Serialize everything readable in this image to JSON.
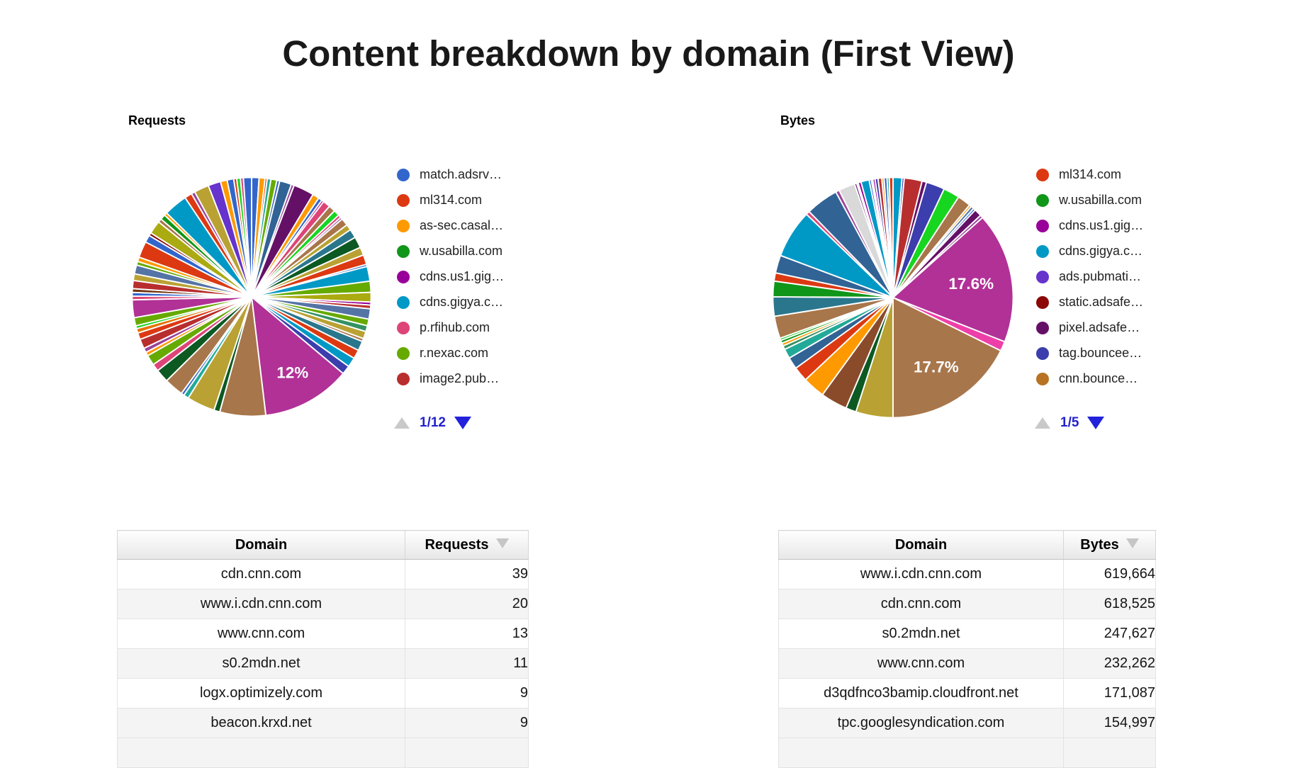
{
  "title": "Content breakdown by domain (First View)",
  "pager_colors": {
    "disabled": "#c9c9c9",
    "active": "#2222dd",
    "text": "#2222cc"
  },
  "chart_data": [
    {
      "type": "pie",
      "title": "Requests",
      "legend_position": "right",
      "legend_page": "1/12",
      "legend_entries": [
        {
          "label": "match.adsrv…",
          "color": "#3366CC"
        },
        {
          "label": "ml314.com",
          "color": "#DC3912"
        },
        {
          "label": "as-sec.casal…",
          "color": "#FF9900"
        },
        {
          "label": "w.usabilla.com",
          "color": "#109618"
        },
        {
          "label": "cdns.us1.gig…",
          "color": "#990099"
        },
        {
          "label": "cdns.gigya.c…",
          "color": "#0099C6"
        },
        {
          "label": "p.rfihub.com",
          "color": "#DD4477"
        },
        {
          "label": "r.nexac.com",
          "color": "#66AA00"
        },
        {
          "label": "image2.pub…",
          "color": "#B82E2E"
        }
      ],
      "labeled_slices": [
        {
          "label": "12%",
          "value_pct": 12
        }
      ],
      "percent_labels": [
        {
          "text": "12%",
          "slice": 38,
          "r": 0.72
        }
      ],
      "render_slices": [
        [
          "#3366CC",
          1.0
        ],
        [
          "#FF9900",
          0.8
        ],
        [
          "#DC3912",
          0.3
        ],
        [
          "#22AA99",
          0.5
        ],
        [
          "#66AA00",
          0.8
        ],
        [
          "#3366CC",
          0.4
        ],
        [
          "#316395",
          1.6
        ],
        [
          "#994499",
          0.4
        ],
        [
          "#651067",
          2.8
        ],
        [
          "#FF9900",
          0.9
        ],
        [
          "#3366CC",
          0.5
        ],
        [
          "#B91383",
          0.3
        ],
        [
          "#DD4477",
          1.0
        ],
        [
          "#A8764B",
          0.9
        ],
        [
          "#16D620",
          0.8
        ],
        [
          "#DD4477",
          0.4
        ],
        [
          "#994499",
          0.3
        ],
        [
          "#A8764B",
          1.0
        ],
        [
          "#B9A233",
          0.8
        ],
        [
          "#2A778D",
          1.2
        ],
        [
          "#0C5922",
          1.5
        ],
        [
          "#B9A233",
          1.1
        ],
        [
          "#DC3912",
          1.3
        ],
        [
          "#3366CC",
          0.3
        ],
        [
          "#0099C6",
          2.0
        ],
        [
          "#66AA00",
          1.5
        ],
        [
          "#AAAA11",
          1.3
        ],
        [
          "#990099",
          0.4
        ],
        [
          "#B82E2E",
          0.5
        ],
        [
          "#5574A6",
          1.4
        ],
        [
          "#66AA00",
          0.9
        ],
        [
          "#329262",
          0.8
        ],
        [
          "#B9A233",
          1.0
        ],
        [
          "#A8764B",
          0.4
        ],
        [
          "#2A778D",
          1.3
        ],
        [
          "#DC3912",
          1.2
        ],
        [
          "#0099C6",
          1.3
        ],
        [
          "#3B3EAC",
          1.2
        ],
        [
          "#B13197",
          12.0
        ],
        [
          "#A8764B",
          6.2
        ],
        [
          "#0C5922",
          0.8
        ],
        [
          "#B9A233",
          3.8
        ],
        [
          "#22AA99",
          0.7
        ],
        [
          "#3366CC",
          0.4
        ],
        [
          "#A8764B",
          2.6
        ],
        [
          "#0C5922",
          1.8
        ],
        [
          "#DD4477",
          1.0
        ],
        [
          "#66AA00",
          1.4
        ],
        [
          "#FF9900",
          0.5
        ],
        [
          "#994499",
          0.6
        ],
        [
          "#B82E2E",
          1.3
        ],
        [
          "#DC3912",
          0.9
        ],
        [
          "#E67300",
          0.6
        ],
        [
          "#16D620",
          0.4
        ],
        [
          "#66AA00",
          1.1
        ],
        [
          "#B13197",
          2.4
        ],
        [
          "#DD4477",
          0.5
        ],
        [
          "#3366CC",
          0.5
        ],
        [
          "#743411",
          0.5
        ],
        [
          "#B82E2E",
          1.1
        ],
        [
          "#B9A233",
          0.9
        ],
        [
          "#5574A6",
          1.2
        ],
        [
          "#66AA00",
          0.5
        ],
        [
          "#FF9900",
          0.6
        ],
        [
          "#DC3912",
          2.2
        ],
        [
          "#3366CC",
          1.0
        ],
        [
          "#8B0707",
          0.4
        ],
        [
          "#AAAA11",
          1.8
        ],
        [
          "#A8764B",
          0.5
        ],
        [
          "#109618",
          0.7
        ],
        [
          "#FF9900",
          0.4
        ],
        [
          "#0099C6",
          3.2
        ],
        [
          "#DC3912",
          1.0
        ],
        [
          "#994499",
          0.5
        ],
        [
          "#B9A233",
          2.0
        ],
        [
          "#6633CC",
          1.7
        ],
        [
          "#FF9900",
          0.9
        ],
        [
          "#3366CC",
          0.9
        ],
        [
          "#DC3912",
          0.4
        ],
        [
          "#16D620",
          0.5
        ],
        [
          "#DD4477",
          0.4
        ],
        [
          "#3366CC",
          1.1
        ]
      ]
    },
    {
      "type": "pie",
      "title": "Bytes",
      "legend_position": "right",
      "legend_page": "1/5",
      "legend_entries": [
        {
          "label": "ml314.com",
          "color": "#DC3912"
        },
        {
          "label": "w.usabilla.com",
          "color": "#109618"
        },
        {
          "label": "cdns.us1.gig…",
          "color": "#990099"
        },
        {
          "label": "cdns.gigya.c…",
          "color": "#0099C6"
        },
        {
          "label": "ads.pubmati…",
          "color": "#6633CC"
        },
        {
          "label": "static.adsafe…",
          "color": "#8B0707"
        },
        {
          "label": "pixel.adsafe…",
          "color": "#651067"
        },
        {
          "label": "tag.bouncee…",
          "color": "#3B3EAC"
        },
        {
          "label": "cnn.bounce…",
          "color": "#B77322"
        }
      ],
      "labeled_slices": [
        {
          "label": "17.6%",
          "value_pct": 17.6
        },
        {
          "label": "17.7%",
          "value_pct": 17.7
        }
      ],
      "percent_labels": [
        {
          "text": "17.6%",
          "slice": 12,
          "r": 0.66
        },
        {
          "text": "17.7%",
          "slice": 14,
          "r": 0.68
        }
      ],
      "render_slices": [
        [
          "#0099C6",
          1.2
        ],
        [
          "#3B3EAC",
          0.3
        ],
        [
          "#B82E2E",
          2.4
        ],
        [
          "#651067",
          0.6
        ],
        [
          "#3B3EAC",
          2.5
        ],
        [
          "#16D620",
          2.2
        ],
        [
          "#A8764B",
          1.8
        ],
        [
          "#FF9900",
          0.3
        ],
        [
          "#5574A6",
          0.4
        ],
        [
          "#3366CC",
          0.3
        ],
        [
          "#651067",
          1.0
        ],
        [
          "#994499",
          0.4
        ],
        [
          "#B13197",
          17.6
        ],
        [
          "#EE3FA8",
          1.3
        ],
        [
          "#A8764B",
          17.7
        ],
        [
          "#B9A233",
          5.0
        ],
        [
          "#0C5922",
          1.4
        ],
        [
          "#8A4B2B",
          3.6
        ],
        [
          "#FF9900",
          3.0
        ],
        [
          "#DC3912",
          2.0
        ],
        [
          "#316395",
          1.6
        ],
        [
          "#22AA99",
          1.3
        ],
        [
          "#329262",
          0.5
        ],
        [
          "#FF9900",
          0.4
        ],
        [
          "#109618",
          0.4
        ],
        [
          "#16D620",
          0.3
        ],
        [
          "#A8764B",
          3.0
        ],
        [
          "#2A778D",
          2.6
        ],
        [
          "#109618",
          2.1
        ],
        [
          "#DC3912",
          1.1
        ],
        [
          "#316395",
          2.4
        ],
        [
          "#0099C6",
          6.5
        ],
        [
          "#DD4477",
          0.5
        ],
        [
          "#316395",
          4.4
        ],
        [
          "#994499",
          0.5
        ],
        [
          "#D9D9D9",
          2.2
        ],
        [
          "#651067",
          0.3
        ],
        [
          "#16D620",
          0.2
        ],
        [
          "#990099",
          0.4
        ],
        [
          "#0099C6",
          1.1
        ],
        [
          "#3366CC",
          0.3
        ],
        [
          "#109618",
          0.2
        ],
        [
          "#990099",
          0.3
        ],
        [
          "#3B3EAC",
          0.4
        ],
        [
          "#B82E2E",
          0.5
        ],
        [
          "#FF9900",
          0.3
        ],
        [
          "#3366CC",
          0.4
        ],
        [
          "#22AA99",
          0.3
        ],
        [
          "#DC3912",
          0.5
        ]
      ]
    },
    {
      "type": "table",
      "title": "Requests by domain",
      "columns": [
        "Domain",
        "Requests"
      ],
      "sorted_column": "Requests",
      "rows": [
        [
          "cdn.cnn.com",
          "39"
        ],
        [
          "www.i.cdn.cnn.com",
          "20"
        ],
        [
          "www.cnn.com",
          "13"
        ],
        [
          "s0.2mdn.net",
          "11"
        ],
        [
          "logx.optimizely.com",
          "9"
        ],
        [
          "beacon.krxd.net",
          "9"
        ]
      ]
    },
    {
      "type": "table",
      "title": "Bytes by domain",
      "columns": [
        "Domain",
        "Bytes"
      ],
      "sorted_column": "Bytes",
      "rows": [
        [
          "www.i.cdn.cnn.com",
          "619,664"
        ],
        [
          "cdn.cnn.com",
          "618,525"
        ],
        [
          "s0.2mdn.net",
          "247,627"
        ],
        [
          "www.cnn.com",
          "232,262"
        ],
        [
          "d3qdfnco3bamip.cloudfront.net",
          "171,087"
        ],
        [
          "tpc.googlesyndication.com",
          "154,997"
        ]
      ]
    }
  ]
}
